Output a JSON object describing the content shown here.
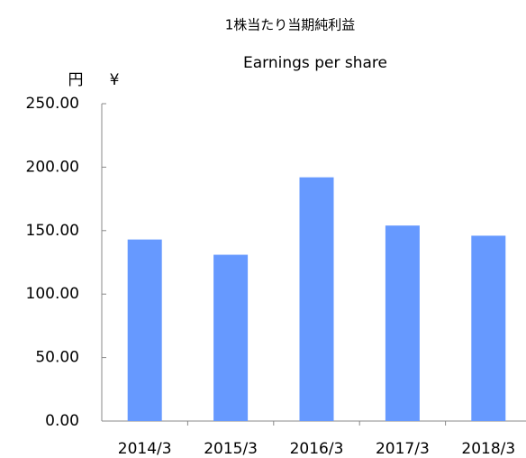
{
  "chart_data": {
    "type": "bar",
    "title": "1株当たり当期純利益",
    "subtitle": "Earnings per share",
    "ylabel": "円",
    "ylabel_en": "¥",
    "categories": [
      "2014/3",
      "2015/3",
      "2016/3",
      "2017/3",
      "2018/3"
    ],
    "values": [
      143,
      131,
      192,
      154,
      146
    ],
    "color": "#6699ff",
    "ylim": [
      0,
      250
    ],
    "yticks": [
      {
        "value": 0,
        "label": "0.00"
      },
      {
        "value": 50,
        "label": "50.00"
      },
      {
        "value": 100,
        "label": "100.00"
      },
      {
        "value": 150,
        "label": "150.00"
      },
      {
        "value": 200,
        "label": "200.00"
      },
      {
        "value": 250,
        "label": "250.00"
      }
    ],
    "grid": false
  }
}
